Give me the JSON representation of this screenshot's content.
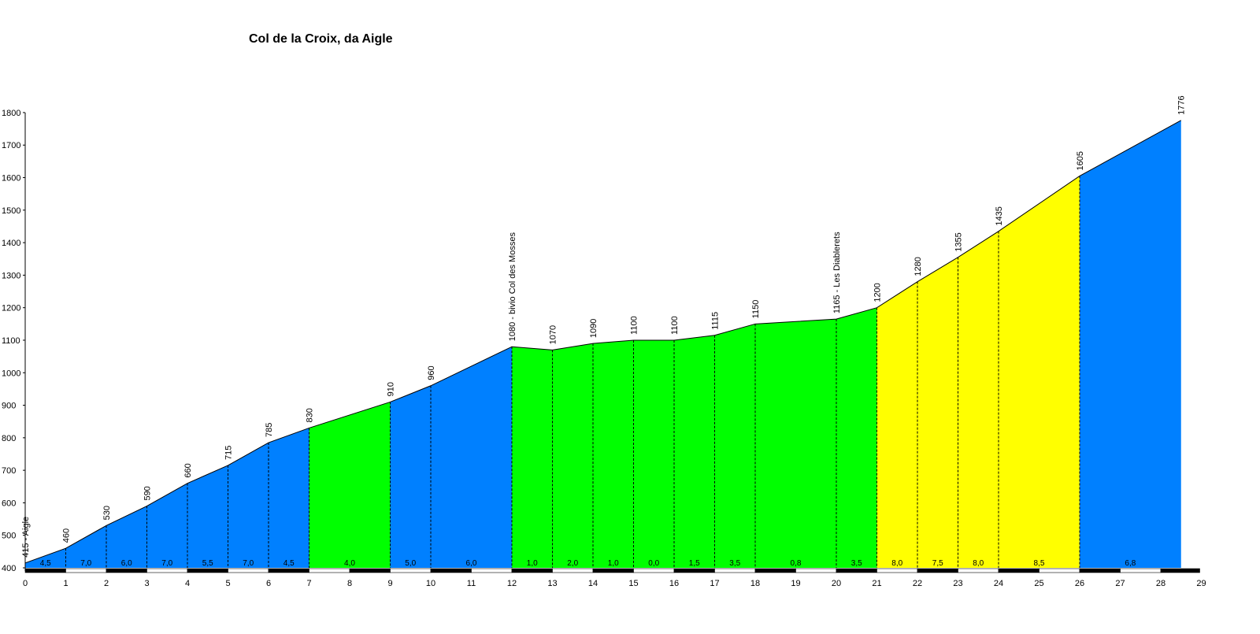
{
  "chart_data": {
    "type": "area",
    "title": "Col de la Croix, da Aigle",
    "xlabel": "",
    "ylabel": "",
    "xlim": [
      0,
      29
    ],
    "ylim": [
      400,
      1800
    ],
    "x_ticks": [
      "0",
      "1",
      "2",
      "3",
      "4",
      "5",
      "6",
      "7",
      "8",
      "9",
      "10",
      "11",
      "12",
      "13",
      "14",
      "15",
      "16",
      "17",
      "18",
      "19",
      "20",
      "21",
      "22",
      "23",
      "24",
      "25",
      "26",
      "27",
      "28",
      "29"
    ],
    "y_ticks": [
      "400",
      "500",
      "600",
      "700",
      "800",
      "900",
      "1000",
      "1100",
      "1200",
      "1300",
      "1400",
      "1500",
      "1600",
      "1700",
      "1800"
    ],
    "colors": {
      "blue": "#0080ff",
      "green": "#00ff00",
      "yellow": "#ffff00"
    },
    "profile": [
      {
        "x": 0,
        "y": 415
      },
      {
        "x": 1,
        "y": 460
      },
      {
        "x": 2,
        "y": 530
      },
      {
        "x": 3,
        "y": 590
      },
      {
        "x": 4,
        "y": 660
      },
      {
        "x": 5,
        "y": 715
      },
      {
        "x": 6,
        "y": 785
      },
      {
        "x": 7,
        "y": 830
      },
      {
        "x": 9,
        "y": 910
      },
      {
        "x": 10,
        "y": 960
      },
      {
        "x": 12,
        "y": 1080
      },
      {
        "x": 13,
        "y": 1070
      },
      {
        "x": 14,
        "y": 1090
      },
      {
        "x": 15,
        "y": 1100
      },
      {
        "x": 16,
        "y": 1100
      },
      {
        "x": 17,
        "y": 1115
      },
      {
        "x": 18,
        "y": 1150
      },
      {
        "x": 20,
        "y": 1165
      },
      {
        "x": 21,
        "y": 1200
      },
      {
        "x": 22,
        "y": 1280
      },
      {
        "x": 23,
        "y": 1355
      },
      {
        "x": 24,
        "y": 1435
      },
      {
        "x": 26,
        "y": 1605
      },
      {
        "x": 28.5,
        "y": 1776
      }
    ],
    "segments": [
      {
        "from": 0,
        "to": 1,
        "gradient": "4,5",
        "color": "blue"
      },
      {
        "from": 1,
        "to": 2,
        "gradient": "7,0",
        "color": "blue"
      },
      {
        "from": 2,
        "to": 3,
        "gradient": "6,0",
        "color": "blue"
      },
      {
        "from": 3,
        "to": 4,
        "gradient": "7,0",
        "color": "blue"
      },
      {
        "from": 4,
        "to": 5,
        "gradient": "5,5",
        "color": "blue"
      },
      {
        "from": 5,
        "to": 6,
        "gradient": "7,0",
        "color": "blue"
      },
      {
        "from": 6,
        "to": 7,
        "gradient": "4,5",
        "color": "blue"
      },
      {
        "from": 7,
        "to": 9,
        "gradient": "4,0",
        "color": "green"
      },
      {
        "from": 9,
        "to": 10,
        "gradient": "5,0",
        "color": "blue"
      },
      {
        "from": 10,
        "to": 12,
        "gradient": "6,0",
        "color": "blue"
      },
      {
        "from": 12,
        "to": 13,
        "gradient": "1,0",
        "color": "green"
      },
      {
        "from": 13,
        "to": 14,
        "gradient": "2,0",
        "color": "green"
      },
      {
        "from": 14,
        "to": 15,
        "gradient": "1,0",
        "color": "green"
      },
      {
        "from": 15,
        "to": 16,
        "gradient": "0,0",
        "color": "green"
      },
      {
        "from": 16,
        "to": 17,
        "gradient": "1,5",
        "color": "green"
      },
      {
        "from": 17,
        "to": 18,
        "gradient": "3,5",
        "color": "green"
      },
      {
        "from": 18,
        "to": 20,
        "gradient": "0,8",
        "color": "green"
      },
      {
        "from": 20,
        "to": 21,
        "gradient": "3,5",
        "color": "green"
      },
      {
        "from": 21,
        "to": 22,
        "gradient": "8,0",
        "color": "yellow"
      },
      {
        "from": 22,
        "to": 23,
        "gradient": "7,5",
        "color": "yellow"
      },
      {
        "from": 23,
        "to": 24,
        "gradient": "8,0",
        "color": "yellow"
      },
      {
        "from": 24,
        "to": 26,
        "gradient": "8,5",
        "color": "yellow"
      },
      {
        "from": 26,
        "to": 28.5,
        "gradient": "6,8",
        "color": "blue"
      }
    ],
    "elevation_labels": [
      {
        "x": 0,
        "y": 415,
        "text": "415 - Aigle"
      },
      {
        "x": 1,
        "y": 460,
        "text": "460"
      },
      {
        "x": 2,
        "y": 530,
        "text": "530"
      },
      {
        "x": 3,
        "y": 590,
        "text": "590"
      },
      {
        "x": 4,
        "y": 660,
        "text": "660"
      },
      {
        "x": 5,
        "y": 715,
        "text": "715"
      },
      {
        "x": 6,
        "y": 785,
        "text": "785"
      },
      {
        "x": 7,
        "y": 830,
        "text": "830"
      },
      {
        "x": 9,
        "y": 910,
        "text": "910"
      },
      {
        "x": 10,
        "y": 960,
        "text": "960"
      },
      {
        "x": 12,
        "y": 1080,
        "text": "1080 - bivio Col des Mosses"
      },
      {
        "x": 13,
        "y": 1070,
        "text": "1070"
      },
      {
        "x": 14,
        "y": 1090,
        "text": "1090"
      },
      {
        "x": 15,
        "y": 1100,
        "text": "1100"
      },
      {
        "x": 16,
        "y": 1100,
        "text": "1100"
      },
      {
        "x": 17,
        "y": 1115,
        "text": "1115"
      },
      {
        "x": 18,
        "y": 1150,
        "text": "1150"
      },
      {
        "x": 20,
        "y": 1165,
        "text": "1165 - Les Diablerets"
      },
      {
        "x": 21,
        "y": 1200,
        "text": "1200"
      },
      {
        "x": 22,
        "y": 1280,
        "text": "1280"
      },
      {
        "x": 23,
        "y": 1355,
        "text": "1355"
      },
      {
        "x": 24,
        "y": 1435,
        "text": "1435"
      },
      {
        "x": 26,
        "y": 1605,
        "text": "1605"
      },
      {
        "x": 28.5,
        "y": 1776,
        "text": "1776"
      }
    ]
  }
}
